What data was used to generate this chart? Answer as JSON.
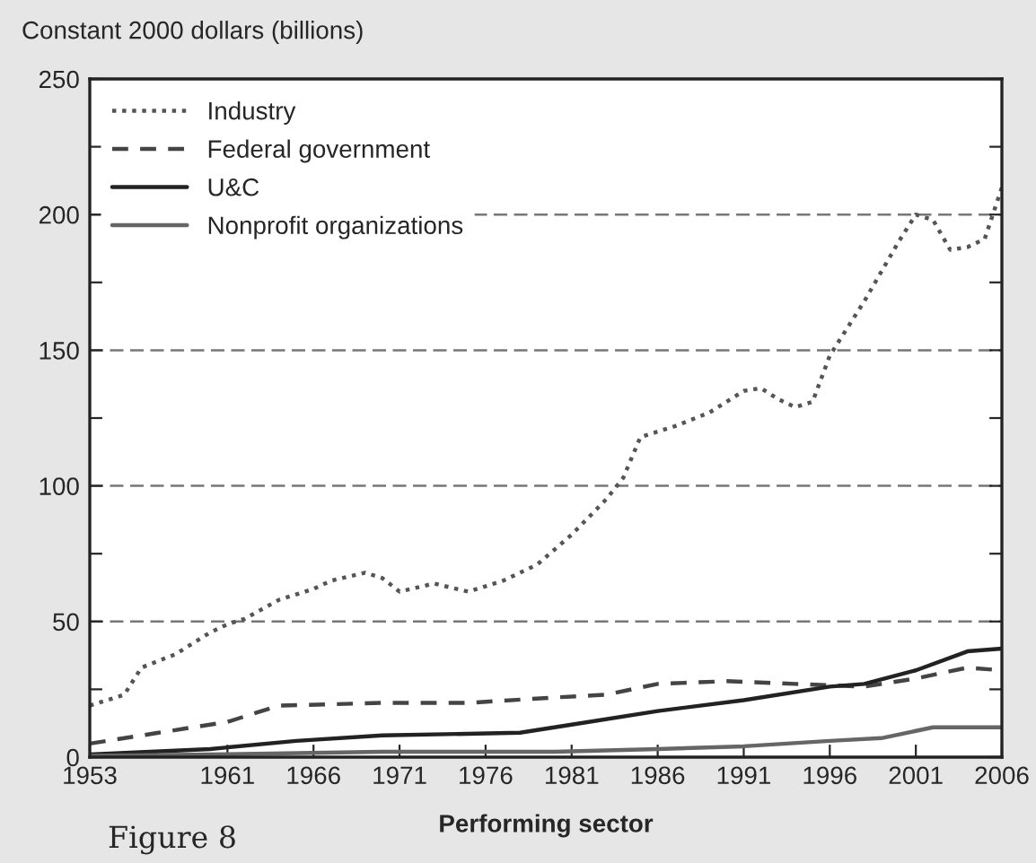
{
  "chart_data": {
    "type": "line",
    "ylabel": "Constant 2000 dollars (billions)",
    "xlabel": "Performing sector",
    "annotations": [
      "Figure 8"
    ],
    "xlim": [
      1953,
      2006
    ],
    "xticks": [
      1953,
      1961,
      1966,
      1971,
      1976,
      1981,
      1986,
      1991,
      1996,
      2001,
      2006
    ],
    "ylim": [
      0,
      250
    ],
    "yticks": [
      0,
      {
        "value": 25,
        "label": null
      },
      50,
      {
        "value": 75,
        "label": null
      },
      100,
      {
        "value": 125,
        "label": null
      },
      150,
      {
        "value": 175,
        "label": null
      },
      200,
      {
        "value": 225,
        "label": null
      },
      250
    ],
    "grid": "y",
    "legend": "top left",
    "series": [
      {
        "name": "Industry",
        "color": "#555555",
        "line_style": "dotted",
        "x": [
          1953,
          1955,
          1956,
          1958,
          1960,
          1961,
          1962,
          1964,
          1966,
          1967,
          1969,
          1970,
          1971,
          1973,
          1975,
          1977,
          1979,
          1981,
          1983,
          1984,
          1985,
          1987,
          1989,
          1991,
          1992,
          1993,
          1994,
          1995,
          1996,
          1998,
          2000,
          2001,
          2002,
          2003,
          2004,
          2005,
          2006
        ],
        "values": [
          19,
          23,
          33,
          38,
          46,
          49,
          51,
          58,
          62,
          65,
          68,
          66,
          61,
          64,
          61,
          65,
          71,
          82,
          95,
          103,
          118,
          122,
          127,
          135,
          136,
          132,
          129,
          131,
          148,
          168,
          190,
          200,
          198,
          187,
          188,
          191,
          210
        ]
      },
      {
        "name": "Federal government",
        "color": "#444444",
        "line_style": "dashed",
        "x": [
          1953,
          1957,
          1961,
          1964,
          1970,
          1975,
          1980,
          1983,
          1986,
          1990,
          1994,
          1998,
          2001,
          2004,
          2006
        ],
        "values": [
          5,
          9,
          13,
          19,
          20,
          20,
          22,
          23,
          27,
          28,
          27,
          26,
          29,
          33,
          32
        ]
      },
      {
        "name": "U&C",
        "color": "#222222",
        "line_style": "solid",
        "x": [
          1953,
          1960,
          1965,
          1970,
          1978,
          1981,
          1986,
          1991,
          1996,
          1998,
          2001,
          2004,
          2006
        ],
        "values": [
          1,
          3,
          6,
          8,
          9,
          12,
          17,
          21,
          26,
          27,
          32,
          39,
          40
        ]
      },
      {
        "name": "Nonprofit organizations",
        "color": "#666666",
        "line_style": "solid",
        "x": [
          1953,
          1960,
          1970,
          1980,
          1986,
          1991,
          1996,
          1999,
          2002,
          2006
        ],
        "values": [
          0.5,
          1,
          2,
          2,
          3,
          4,
          6,
          7,
          11,
          11
        ]
      }
    ]
  }
}
